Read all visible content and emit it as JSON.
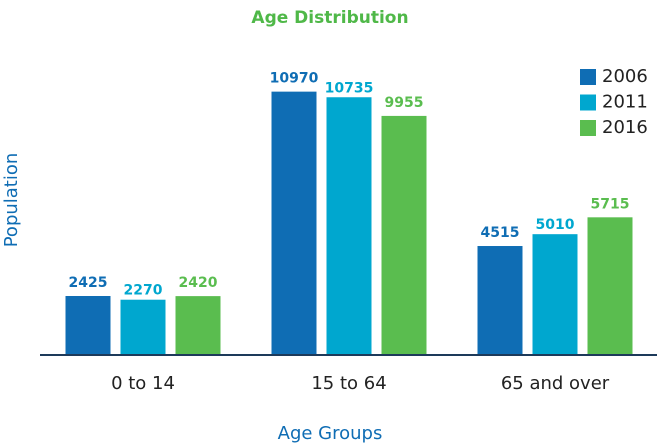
{
  "chart_data": {
    "type": "bar",
    "title": "Age Distribution",
    "x_label": "Age Groups",
    "y_label": "Population",
    "categories": [
      "0 to 14",
      "15 to 64",
      "65 and over"
    ],
    "series": [
      {
        "name": "2006",
        "color": "#0f6db4",
        "values": [
          2425,
          10970,
          4515
        ]
      },
      {
        "name": "2011",
        "color": "#00a7cf",
        "values": [
          2270,
          10735,
          5010
        ]
      },
      {
        "name": "2016",
        "color": "#5abd4f",
        "values": [
          2420,
          9955,
          5715
        ]
      }
    ],
    "ylim": [
      0,
      12000
    ],
    "legend": "upper right"
  }
}
